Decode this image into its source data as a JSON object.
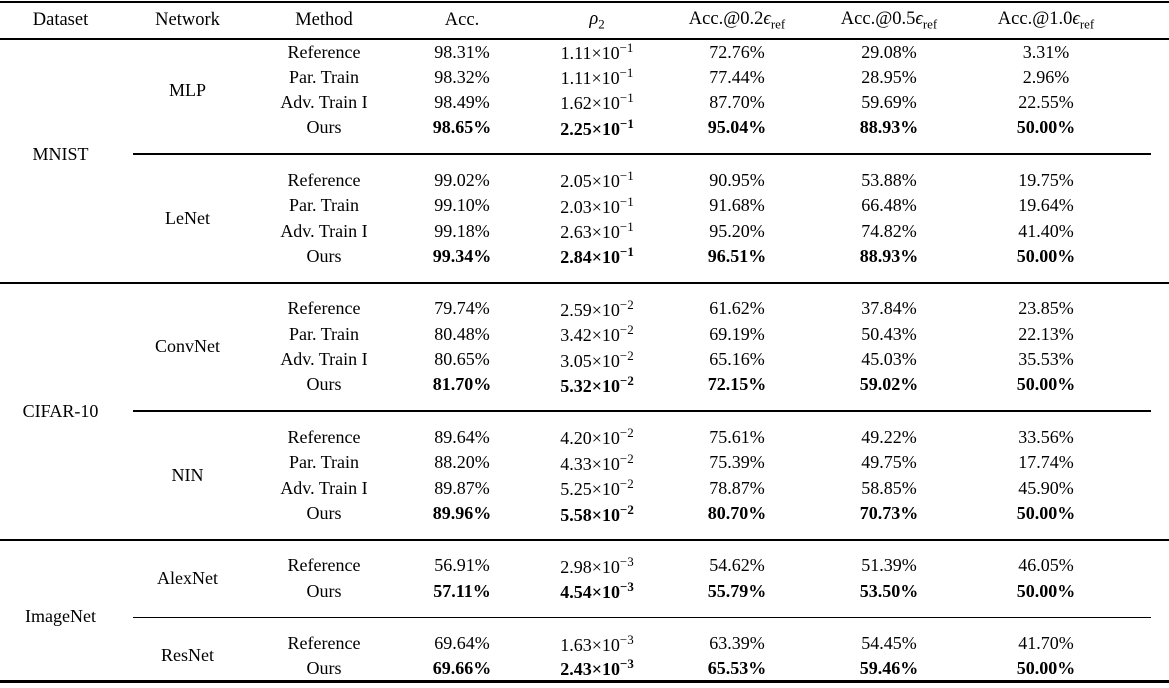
{
  "page": {
    "background": "#ffffff",
    "text_color": "#000000"
  },
  "table": {
    "times_base": "×10",
    "columns": [
      {
        "id": "dataset",
        "label": "Dataset"
      },
      {
        "id": "network",
        "label": "Network"
      },
      {
        "id": "method",
        "label": "Method"
      },
      {
        "id": "acc",
        "label": "Acc."
      },
      {
        "id": "rho2",
        "symbol": "ρ",
        "sub": "2"
      },
      {
        "id": "acc02",
        "prefix": "Acc.@0.2",
        "symbol": "ϵ",
        "sub": "ref"
      },
      {
        "id": "acc05",
        "prefix": "Acc.@0.5",
        "symbol": "ϵ",
        "sub": "ref"
      },
      {
        "id": "acc10",
        "prefix": "Acc.@1.0",
        "symbol": "ϵ",
        "sub": "ref"
      }
    ],
    "groups": [
      {
        "dataset": "MNIST",
        "networks": [
          {
            "name": "MLP",
            "rows": [
              {
                "method": "Reference",
                "acc": "98.31%",
                "rho": {
                  "m": "1.11",
                  "e": "−1"
                },
                "a02": "72.76%",
                "a05": "29.08%",
                "a10": "3.31%",
                "bold": false
              },
              {
                "method": "Par. Train",
                "acc": "98.32%",
                "rho": {
                  "m": "1.11",
                  "e": "−1"
                },
                "a02": "77.44%",
                "a05": "28.95%",
                "a10": "2.96%",
                "bold": false
              },
              {
                "method": "Adv. Train I",
                "acc": "98.49%",
                "rho": {
                  "m": "1.62",
                  "e": "−1"
                },
                "a02": "87.70%",
                "a05": "59.69%",
                "a10": "22.55%",
                "bold": false
              },
              {
                "method": "Ours",
                "acc": "98.65%",
                "rho": {
                  "m": "2.25",
                  "e": "−1"
                },
                "a02": "95.04%",
                "a05": "88.93%",
                "a10": "50.00%",
                "bold": true
              }
            ]
          },
          {
            "name": "LeNet",
            "rows": [
              {
                "method": "Reference",
                "acc": "99.02%",
                "rho": {
                  "m": "2.05",
                  "e": "−1"
                },
                "a02": "90.95%",
                "a05": "53.88%",
                "a10": "19.75%",
                "bold": false
              },
              {
                "method": "Par. Train",
                "acc": "99.10%",
                "rho": {
                  "m": "2.03",
                  "e": "−1"
                },
                "a02": "91.68%",
                "a05": "66.48%",
                "a10": "19.64%",
                "bold": false
              },
              {
                "method": "Adv. Train I",
                "acc": "99.18%",
                "rho": {
                  "m": "2.63",
                  "e": "−1"
                },
                "a02": "95.20%",
                "a05": "74.82%",
                "a10": "41.40%",
                "bold": false
              },
              {
                "method": "Ours",
                "acc": "99.34%",
                "rho": {
                  "m": "2.84",
                  "e": "−1"
                },
                "a02": "96.51%",
                "a05": "88.93%",
                "a10": "50.00%",
                "bold": true
              }
            ]
          }
        ]
      },
      {
        "dataset": "CIFAR-10",
        "networks": [
          {
            "name": "ConvNet",
            "rows": [
              {
                "method": "Reference",
                "acc": "79.74%",
                "rho": {
                  "m": "2.59",
                  "e": "−2"
                },
                "a02": "61.62%",
                "a05": "37.84%",
                "a10": "23.85%",
                "bold": false
              },
              {
                "method": "Par. Train",
                "acc": "80.48%",
                "rho": {
                  "m": "3.42",
                  "e": "−2"
                },
                "a02": "69.19%",
                "a05": "50.43%",
                "a10": "22.13%",
                "bold": false
              },
              {
                "method": "Adv. Train I",
                "acc": "80.65%",
                "rho": {
                  "m": "3.05",
                  "e": "−2"
                },
                "a02": "65.16%",
                "a05": "45.03%",
                "a10": "35.53%",
                "bold": false
              },
              {
                "method": "Ours",
                "acc": "81.70%",
                "rho": {
                  "m": "5.32",
                  "e": "−2"
                },
                "a02": "72.15%",
                "a05": "59.02%",
                "a10": "50.00%",
                "bold": true
              }
            ]
          },
          {
            "name": "NIN",
            "rows": [
              {
                "method": "Reference",
                "acc": "89.64%",
                "rho": {
                  "m": "4.20",
                  "e": "−2"
                },
                "a02": "75.61%",
                "a05": "49.22%",
                "a10": "33.56%",
                "bold": false
              },
              {
                "method": "Par. Train",
                "acc": "88.20%",
                "rho": {
                  "m": "4.33",
                  "e": "−2"
                },
                "a02": "75.39%",
                "a05": "49.75%",
                "a10": "17.74%",
                "bold": false
              },
              {
                "method": "Adv. Train I",
                "acc": "89.87%",
                "rho": {
                  "m": "5.25",
                  "e": "−2"
                },
                "a02": "78.87%",
                "a05": "58.85%",
                "a10": "45.90%",
                "bold": false
              },
              {
                "method": "Ours",
                "acc": "89.96%",
                "rho": {
                  "m": "5.58",
                  "e": "−2"
                },
                "a02": "80.70%",
                "a05": "70.73%",
                "a10": "50.00%",
                "bold": true
              }
            ]
          }
        ]
      },
      {
        "dataset": "ImageNet",
        "networks": [
          {
            "name": "AlexNet",
            "rows": [
              {
                "method": "Reference",
                "acc": "56.91%",
                "rho": {
                  "m": "2.98",
                  "e": "−3"
                },
                "a02": "54.62%",
                "a05": "51.39%",
                "a10": "46.05%",
                "bold": false
              },
              {
                "method": "Ours",
                "acc": "57.11%",
                "rho": {
                  "m": "4.54",
                  "e": "−3"
                },
                "a02": "55.79%",
                "a05": "53.50%",
                "a10": "50.00%",
                "bold": true
              }
            ]
          },
          {
            "name": "ResNet",
            "rows": [
              {
                "method": "Reference",
                "acc": "69.64%",
                "rho": {
                  "m": "1.63",
                  "e": "−3"
                },
                "a02": "63.39%",
                "a05": "54.45%",
                "a10": "41.70%",
                "bold": false
              },
              {
                "method": "Ours",
                "acc": "69.66%",
                "rho": {
                  "m": "2.43",
                  "e": "−3"
                },
                "a02": "65.53%",
                "a05": "59.46%",
                "a10": "50.00%",
                "bold": true
              }
            ]
          }
        ]
      }
    ]
  }
}
